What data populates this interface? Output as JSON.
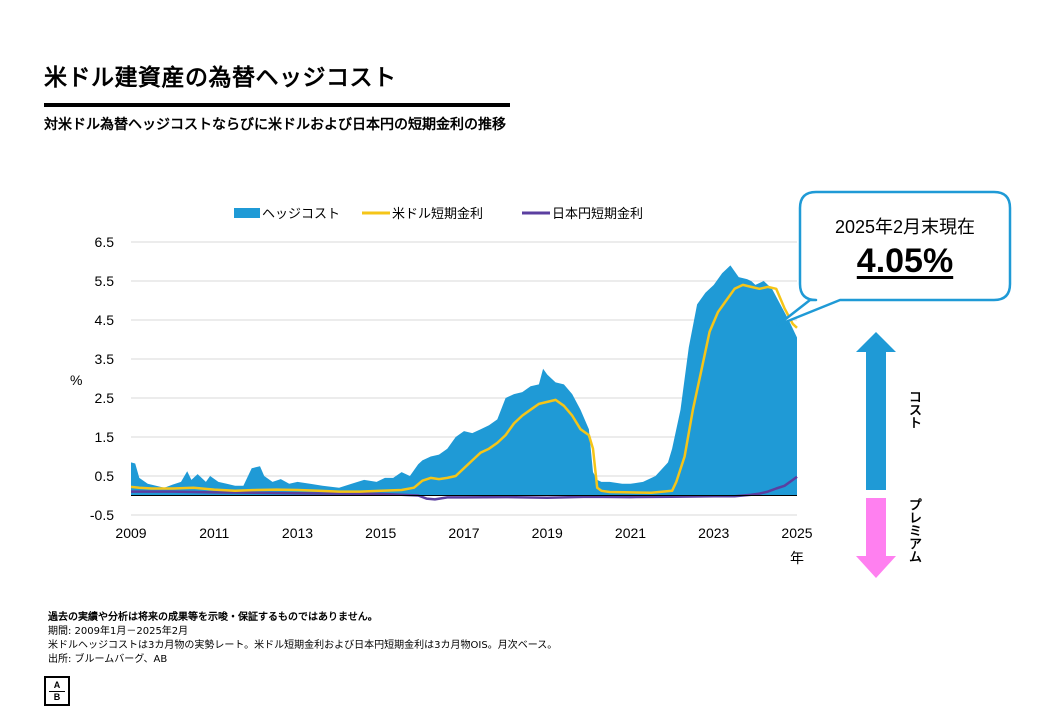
{
  "header": {
    "title": "米ドル建資産の為替ヘッジコスト",
    "subtitle": "対米ドル為替ヘッジコストならびに米ドルおよび日本円の短期金利の推移"
  },
  "callout": {
    "line1": "2025年2月末現在",
    "value": "4.05%"
  },
  "arrows": {
    "up_label": "コスト",
    "down_label": "プレミアム"
  },
  "notes": {
    "disclaimer": "過去の実績や分析は将来の成果等を示唆・保証するものではありません。",
    "period": "期間: 2009年1月－2025年2月",
    "method": "米ドルヘッジコストは3カ月物の実勢レート。米ドル短期金利および日本円短期金利は3カ月物OIS。月次ベース。",
    "source": "出所: ブルームバーグ、AB"
  },
  "logo": {
    "top": "A",
    "bottom": "B"
  },
  "colors": {
    "hedge_cost": "#1f9ad6",
    "usd_rate": "#f5c518",
    "jpy_rate": "#5b3fa0",
    "up_arrow": "#1f9ad6",
    "down_arrow": "#ff80f0",
    "callout_border": "#1f9ad6"
  },
  "chart_data": {
    "type": "line",
    "ylabel": "%",
    "xlabel": "年",
    "ylim": [
      -0.5,
      6.5
    ],
    "xlim": [
      2009,
      2025
    ],
    "yticks": [
      "6.5",
      "5.5",
      "4.5",
      "3.5",
      "2.5",
      "1.5",
      "0.5",
      "-0.5"
    ],
    "xticks": [
      "2009",
      "2011",
      "2013",
      "2015",
      "2017",
      "2019",
      "2021",
      "2023",
      "2025"
    ],
    "grid": true,
    "legend": "top",
    "series": [
      {
        "name": "ヘッジコスト",
        "style": "area",
        "x": [
          2009.0,
          2009.1,
          2009.2,
          2009.4,
          2009.6,
          2009.8,
          2010.0,
          2010.2,
          2010.35,
          2010.45,
          2010.6,
          2010.8,
          2010.9,
          2011.1,
          2011.3,
          2011.5,
          2011.7,
          2011.9,
          2012.1,
          2012.2,
          2012.4,
          2012.6,
          2012.8,
          2013.0,
          2013.3,
          2013.6,
          2014.0,
          2014.3,
          2014.6,
          2014.9,
          2015.1,
          2015.3,
          2015.5,
          2015.7,
          2015.9,
          2016.0,
          2016.2,
          2016.4,
          2016.6,
          2016.8,
          2017.0,
          2017.2,
          2017.4,
          2017.6,
          2017.8,
          2018.0,
          2018.2,
          2018.4,
          2018.6,
          2018.8,
          2018.9,
          2019.0,
          2019.2,
          2019.4,
          2019.6,
          2019.8,
          2020.0,
          2020.1,
          2020.2,
          2020.3,
          2020.5,
          2020.8,
          2021.0,
          2021.3,
          2021.6,
          2021.9,
          2022.0,
          2022.2,
          2022.4,
          2022.6,
          2022.8,
          2023.0,
          2023.2,
          2023.4,
          2023.6,
          2023.8,
          2023.9,
          2024.0,
          2024.2,
          2024.4,
          2024.6,
          2024.8,
          2025.0
        ],
        "values": [
          0.85,
          0.82,
          0.45,
          0.3,
          0.25,
          0.2,
          0.28,
          0.35,
          0.62,
          0.4,
          0.55,
          0.35,
          0.5,
          0.35,
          0.3,
          0.25,
          0.25,
          0.7,
          0.75,
          0.5,
          0.35,
          0.42,
          0.3,
          0.35,
          0.3,
          0.25,
          0.2,
          0.3,
          0.4,
          0.35,
          0.45,
          0.45,
          0.6,
          0.5,
          0.8,
          0.9,
          1.0,
          1.05,
          1.2,
          1.5,
          1.65,
          1.6,
          1.7,
          1.8,
          1.95,
          2.5,
          2.6,
          2.65,
          2.8,
          2.85,
          3.25,
          3.1,
          2.9,
          2.85,
          2.6,
          2.2,
          1.7,
          0.6,
          0.4,
          0.35,
          0.35,
          0.3,
          0.3,
          0.35,
          0.5,
          0.85,
          1.2,
          2.2,
          3.8,
          4.9,
          5.2,
          5.4,
          5.7,
          5.9,
          5.6,
          5.55,
          5.5,
          5.4,
          5.5,
          5.3,
          4.9,
          4.5,
          4.05
        ]
      },
      {
        "name": "米ドル短期金利",
        "style": "line",
        "x": [
          2009.0,
          2009.2,
          2009.5,
          2010.0,
          2010.5,
          2011.0,
          2011.5,
          2012.0,
          2012.5,
          2013.0,
          2013.5,
          2014.0,
          2014.5,
          2015.0,
          2015.5,
          2015.8,
          2016.0,
          2016.2,
          2016.4,
          2016.6,
          2016.8,
          2017.0,
          2017.2,
          2017.4,
          2017.6,
          2017.8,
          2018.0,
          2018.2,
          2018.4,
          2018.6,
          2018.8,
          2019.0,
          2019.2,
          2019.4,
          2019.6,
          2019.8,
          2020.0,
          2020.1,
          2020.2,
          2020.3,
          2020.5,
          2021.0,
          2021.5,
          2022.0,
          2022.1,
          2022.3,
          2022.5,
          2022.7,
          2022.9,
          2023.1,
          2023.3,
          2023.5,
          2023.7,
          2023.9,
          2024.1,
          2024.3,
          2024.5,
          2024.7,
          2024.9,
          2025.0
        ],
        "values": [
          0.22,
          0.2,
          0.18,
          0.18,
          0.2,
          0.15,
          0.12,
          0.14,
          0.15,
          0.14,
          0.12,
          0.1,
          0.1,
          0.12,
          0.14,
          0.2,
          0.38,
          0.45,
          0.42,
          0.45,
          0.5,
          0.7,
          0.9,
          1.1,
          1.2,
          1.35,
          1.55,
          1.85,
          2.05,
          2.2,
          2.35,
          2.4,
          2.45,
          2.3,
          2.05,
          1.7,
          1.55,
          1.2,
          0.2,
          0.12,
          0.09,
          0.08,
          0.07,
          0.12,
          0.35,
          1.0,
          2.2,
          3.2,
          4.2,
          4.7,
          5.0,
          5.3,
          5.4,
          5.35,
          5.3,
          5.35,
          5.3,
          4.8,
          4.4,
          4.3
        ]
      },
      {
        "name": "日本円短期金利",
        "style": "line",
        "x": [
          2009.0,
          2010.0,
          2011.0,
          2012.0,
          2013.0,
          2014.0,
          2015.0,
          2015.9,
          2016.1,
          2016.3,
          2016.6,
          2017.0,
          2018.0,
          2019.0,
          2020.0,
          2021.0,
          2022.0,
          2023.0,
          2023.5,
          2023.9,
          2024.1,
          2024.3,
          2024.5,
          2024.7,
          2024.9,
          2025.0
        ],
        "values": [
          0.1,
          0.1,
          0.08,
          0.07,
          0.06,
          0.05,
          0.04,
          0.0,
          -0.08,
          -0.1,
          -0.05,
          -0.05,
          -0.04,
          -0.06,
          -0.03,
          -0.04,
          -0.03,
          -0.02,
          -0.02,
          0.02,
          0.05,
          0.1,
          0.18,
          0.25,
          0.4,
          0.48
        ]
      }
    ]
  }
}
